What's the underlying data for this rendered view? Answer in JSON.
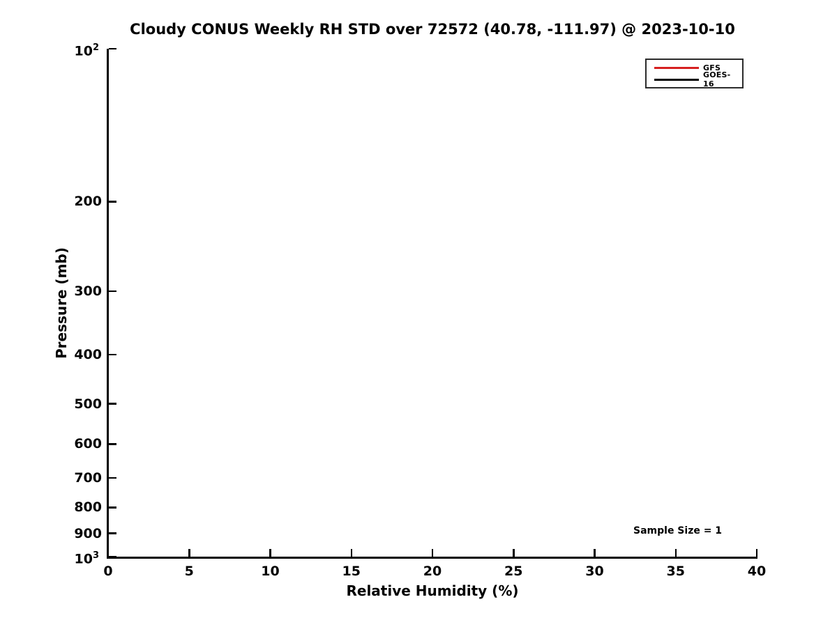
{
  "chart_data": {
    "type": "line",
    "title": "Cloudy CONUS Weekly RH STD over 72572 (40.78, -111.97) @ 2023-10-10",
    "xlabel": "Relative Humidity (%)",
    "ylabel": "Pressure (mb)",
    "x_axis": {
      "scale": "linear",
      "min": 0,
      "max": 40,
      "ticks": [
        0,
        5,
        10,
        15,
        20,
        25,
        30,
        35,
        40
      ],
      "tick_labels": [
        "0",
        "5",
        "10",
        "15",
        "20",
        "25",
        "30",
        "35",
        "40"
      ]
    },
    "y_axis": {
      "scale": "log",
      "min": 100,
      "max": 1000,
      "inverted": true,
      "major_ticks": [
        {
          "value": 100,
          "base": "10",
          "exponent": "2"
        },
        {
          "value": 1000,
          "base": "10",
          "exponent": "3"
        }
      ],
      "minor_ticks": [
        {
          "value": 200,
          "label": "200"
        },
        {
          "value": 300,
          "label": "300"
        },
        {
          "value": 400,
          "label": "400"
        },
        {
          "value": 500,
          "label": "500"
        },
        {
          "value": 600,
          "label": "600"
        },
        {
          "value": 700,
          "label": "700"
        },
        {
          "value": 800,
          "label": "800"
        },
        {
          "value": 900,
          "label": "900"
        }
      ]
    },
    "series": [
      {
        "name": "GFS",
        "color": "#d62020",
        "values": []
      },
      {
        "name": "GOES-16",
        "color": "#000000",
        "values": []
      }
    ],
    "legend": {
      "position": "top-right",
      "entries": [
        "GFS",
        "GOES-16"
      ]
    },
    "annotation": {
      "text": "Sample Size = 1"
    },
    "sample_size": 1,
    "grid": false,
    "plot_area_empty": true
  },
  "colors": {
    "background": "#ffffff",
    "axis": "#000000",
    "text": "#000000",
    "gfs_red": "#d62020",
    "goes_black": "#000000",
    "legend_border": "#2b2b2b"
  }
}
